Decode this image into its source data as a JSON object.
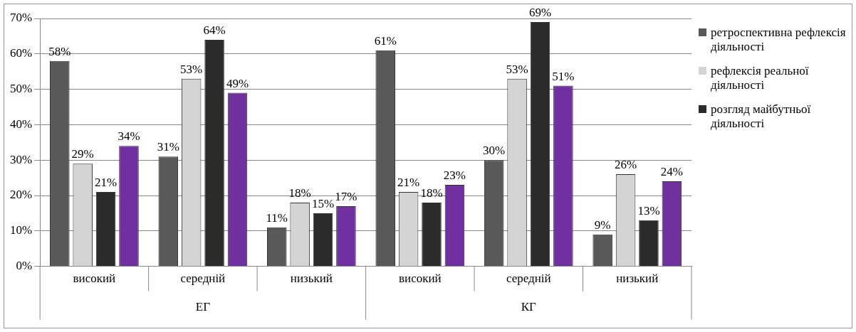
{
  "chart_data": {
    "type": "bar",
    "categories": [
      "високий",
      "середній",
      "низький",
      "високий",
      "середній",
      "низький"
    ],
    "annotations": [
      "ЕГ",
      "КГ"
    ],
    "series": [
      {
        "name": "ретроспективна рефлексія діяльності",
        "color": "#595959",
        "values": [
          58,
          31,
          11,
          61,
          30,
          9
        ],
        "value_labels": [
          "58%",
          "31%",
          "11%",
          "61%",
          "30%",
          "9%"
        ]
      },
      {
        "name": "рефлексія реальної діяльності",
        "color": "#d4d4d4",
        "values": [
          29,
          53,
          18,
          21,
          53,
          26
        ],
        "value_labels": [
          "29%",
          "53%",
          "18%",
          "21%",
          "53%",
          "26%"
        ]
      },
      {
        "name": "розгляд майбутньої діяльності",
        "color": "#2b2b2b",
        "values": [
          21,
          64,
          15,
          18,
          69,
          13
        ],
        "value_labels": [
          "21%",
          "64%",
          "15%",
          "18%",
          "69%",
          "13%"
        ]
      },
      {
        "color": "#7030a0",
        "values": [
          34,
          49,
          17,
          23,
          51,
          24
        ],
        "value_labels": [
          "34%",
          "49%",
          "17%",
          "23%",
          "51%",
          "24%"
        ]
      }
    ],
    "ylim": [
      0,
      70
    ],
    "yticks": [
      {
        "value": 0,
        "label": "0%"
      },
      {
        "value": 10,
        "label": "10%"
      },
      {
        "value": 20,
        "label": "20%"
      },
      {
        "value": 30,
        "label": "30%"
      },
      {
        "value": 40,
        "label": "40%"
      },
      {
        "value": 50,
        "label": "50%"
      },
      {
        "value": 60,
        "label": "60%"
      },
      {
        "value": 70,
        "label": "70%"
      }
    ],
    "grid": "y",
    "legend": "right"
  }
}
